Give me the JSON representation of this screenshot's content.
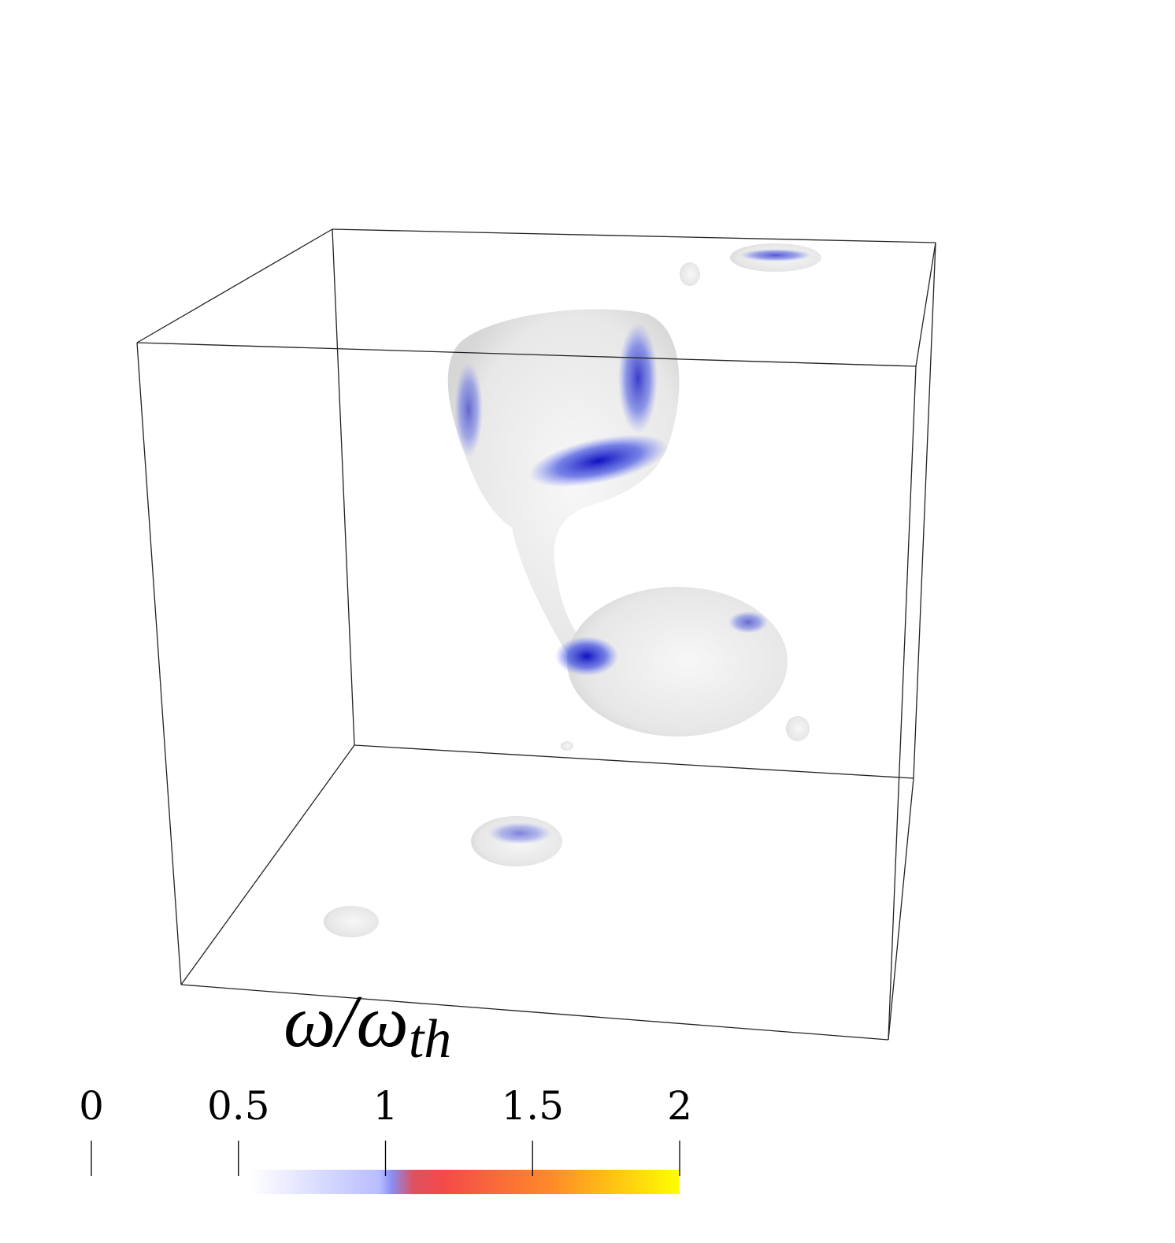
{
  "colorbar": {
    "label": "ω/ω",
    "label_subscript": "th",
    "lim": [
      0,
      2
    ],
    "ticks": [
      0,
      0.5,
      1,
      1.5,
      2
    ]
  }
}
